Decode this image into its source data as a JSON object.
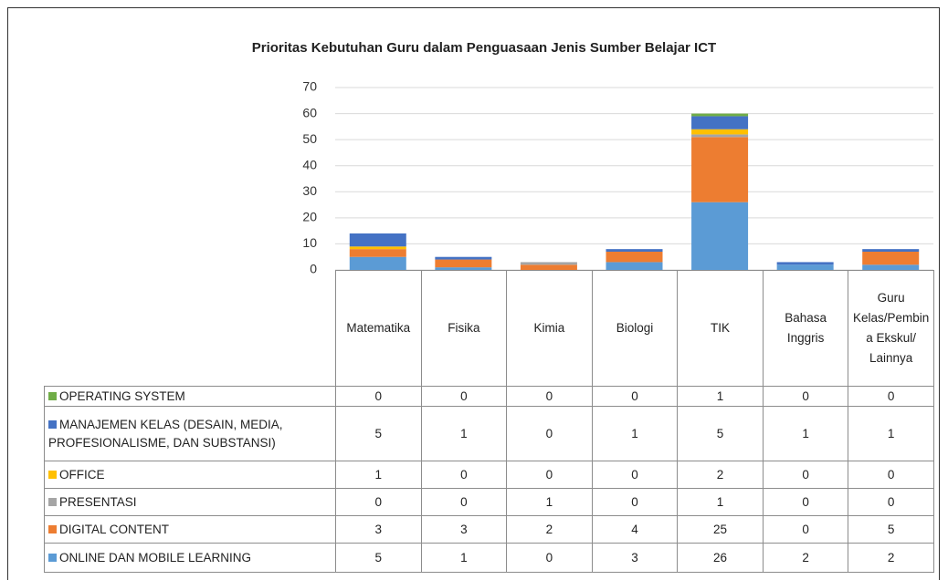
{
  "chart_data": {
    "type": "stacked_bar",
    "title": "Prioritas Kebutuhan Guru dalam Penguasaan Jenis Sumber Belajar ICT",
    "categories": [
      "Matematika",
      "Fisika",
      "Kimia",
      "Biologi",
      "TIK",
      "Bahasa Inggris",
      "Guru Kelas/Pembina Ekskul/ Lainnya"
    ],
    "series": [
      {
        "name": "ONLINE DAN MOBILE LEARNING",
        "color": "#5b9bd5",
        "values": [
          5,
          1,
          0,
          3,
          26,
          2,
          2
        ]
      },
      {
        "name": "DIGITAL CONTENT",
        "color": "#ed7d31",
        "values": [
          3,
          3,
          2,
          4,
          25,
          0,
          5
        ]
      },
      {
        "name": "PRESENTASI",
        "color": "#a5a5a5",
        "values": [
          0,
          0,
          1,
          0,
          1,
          0,
          0
        ]
      },
      {
        "name": "OFFICE",
        "color": "#ffc000",
        "values": [
          1,
          0,
          0,
          0,
          2,
          0,
          0
        ]
      },
      {
        "name": "MANAJEMEN KELAS (DESAIN, MEDIA, PROFESIONALISME, DAN SUBSTANSI)",
        "color": "#4472c4",
        "values": [
          5,
          1,
          0,
          1,
          5,
          1,
          1
        ]
      },
      {
        "name": "OPERATING SYSTEM",
        "color": "#70ad47",
        "values": [
          0,
          0,
          0,
          0,
          1,
          0,
          0
        ]
      }
    ],
    "ylim": [
      0,
      70
    ],
    "yticks": [
      0,
      10,
      20,
      30,
      40,
      50,
      60,
      70
    ],
    "grid": true
  }
}
